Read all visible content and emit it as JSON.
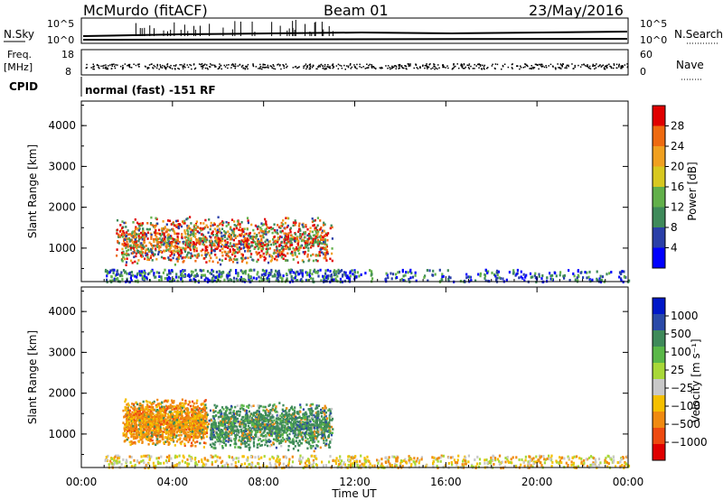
{
  "header": {
    "station": "McMurdo (fitACF)",
    "beam": "Beam 01",
    "date": "23/May/2016"
  },
  "status_panels": {
    "nsky_label": "N.Sky",
    "nsearch_label": "N.Search",
    "nsky_ticks": [
      "10^5",
      "10^0"
    ],
    "nsearch_ticks": [
      "10^5",
      "10^0"
    ],
    "freq_label_line1": "Freq.",
    "freq_label_line2": "[MHz]",
    "freq_ticks": [
      "18",
      "8"
    ],
    "nave_label": "Nave",
    "nave_ticks": [
      "60",
      "0"
    ],
    "cpid_label": "CPID",
    "cpid_text": "normal (fast) -151 RF"
  },
  "colors": {
    "power_scale": [
      "#0000ff",
      "#2a3fa8",
      "#3f8a5a",
      "#62b04a",
      "#d8c820",
      "#f0a020",
      "#ee6a10",
      "#e00000"
    ],
    "velocity_scale": [
      "#e00000",
      "#ee4a10",
      "#f08a10",
      "#f5c000",
      "#c8c8c8",
      "#a8d838",
      "#5ab848",
      "#3f8a5a",
      "#2a4aa8",
      "#0018c8"
    ]
  },
  "chart_data": [
    {
      "type": "heatmap",
      "panel": "power",
      "ylabel": "Slant Range [km]",
      "colorbar_label": "Power [dB]",
      "colorbar_ticks": [
        "28",
        "24",
        "20",
        "16",
        "12",
        "8",
        "4"
      ],
      "colorbar_range": [
        0,
        32
      ],
      "x_ticks": [
        "00:00",
        "04:00",
        "08:00",
        "12:00",
        "16:00",
        "20:00",
        "00:00"
      ],
      "y_ticks": [
        "4000",
        "3000",
        "2000",
        "1000"
      ],
      "xlim_hours": [
        0,
        24
      ],
      "ylim_km": [
        180,
        4600
      ],
      "features": [
        {
          "label": "main echo region",
          "t_start_h": 1.5,
          "t_end_h": 11.0,
          "range_km": [
            600,
            1800
          ],
          "power_db": [
            8,
            28
          ]
        },
        {
          "label": "ground scatter band",
          "t_start_h": 1.0,
          "t_end_h": 24.0,
          "range_km": [
            200,
            500
          ],
          "power_db": [
            4,
            12
          ]
        }
      ]
    },
    {
      "type": "heatmap",
      "panel": "velocity",
      "ylabel": "Slant Range [km]",
      "colorbar_label": "Velocity [m s⁻¹]",
      "colorbar_ticks": [
        "1000",
        "500",
        "100",
        "25",
        "−25",
        "−100",
        "−500",
        "−1000"
      ],
      "x_ticks": [
        "00:00",
        "04:00",
        "08:00",
        "12:00",
        "16:00",
        "20:00",
        "00:00"
      ],
      "y_ticks": [
        "4000",
        "3000",
        "2000",
        "1000"
      ],
      "xlabel": "Time UT",
      "xlim_hours": [
        0,
        24
      ],
      "ylim_km": [
        180,
        4600
      ],
      "features": [
        {
          "label": "negative velocity echoes",
          "t_start_h": 1.8,
          "t_end_h": 5.5,
          "range_km": [
            700,
            1900
          ],
          "velocity": "-100 to -500"
        },
        {
          "label": "positive velocity echoes",
          "t_start_h": 5.5,
          "t_end_h": 11.0,
          "range_km": [
            600,
            1800
          ],
          "velocity": "100 to 500"
        }
      ]
    }
  ]
}
